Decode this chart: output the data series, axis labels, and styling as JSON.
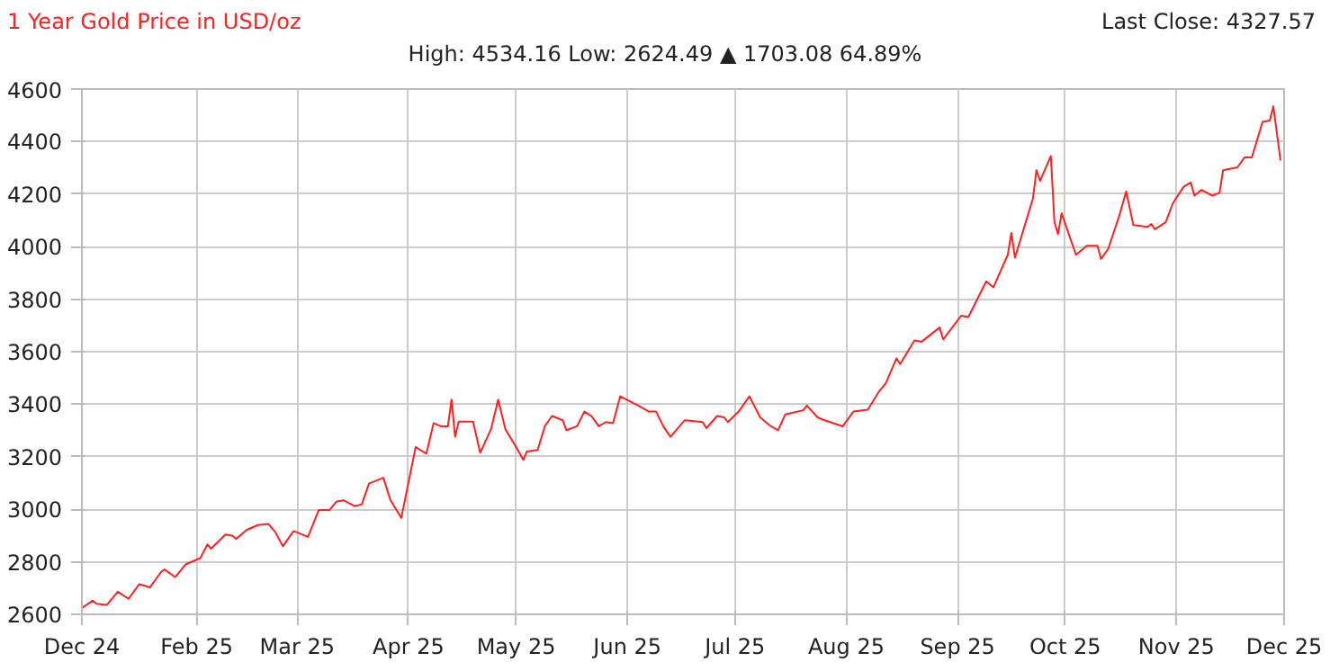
{
  "chart_data": {
    "type": "line",
    "title": "1 Year Gold Price in USD/oz",
    "subtitle": "High: 4534.16 Low: 2624.49 ▲ 1703.08 64.89%",
    "annotations": [
      "Last Close: 4327.57"
    ],
    "xlim": [
      "2024-12-31",
      "2025-12-01"
    ],
    "xticks": [
      {
        "value": "2024-12-31",
        "label": "Dec 24"
      },
      {
        "value": "2025-02-01",
        "label": "Feb 25"
      },
      {
        "value": "2025-03-01",
        "label": "Mar 25"
      },
      {
        "value": "2025-04-01",
        "label": "Apr 25"
      },
      {
        "value": "2025-05-01",
        "label": "May 25"
      },
      {
        "value": "2025-06-01",
        "label": "Jun 25"
      },
      {
        "value": "2025-07-01",
        "label": "Jul 25"
      },
      {
        "value": "2025-08-01",
        "label": "Aug 25"
      },
      {
        "value": "2025-09-01",
        "label": "Sep 25"
      },
      {
        "value": "2025-10-01",
        "label": "Oct 25"
      },
      {
        "value": "2025-11-01",
        "label": "Nov 25"
      },
      {
        "value": "2025-12-01",
        "label": "Dec 25"
      }
    ],
    "ylim": [
      2600,
      4600
    ],
    "yticks": [
      2600,
      2800,
      3000,
      3200,
      3400,
      3600,
      3800,
      4000,
      4200,
      4400,
      4600
    ],
    "grid": true,
    "line_style": "solid",
    "series": [
      {
        "color": "#ff2020",
        "x": [
          "2024-12-31",
          "2025-01-03",
          "2025-01-04",
          "2025-01-07",
          "2025-01-10",
          "2025-01-13",
          "2025-01-16",
          "2025-01-19",
          "2025-01-22",
          "2025-01-23",
          "2025-01-26",
          "2025-01-29",
          "2025-02-02",
          "2025-02-04",
          "2025-02-05",
          "2025-02-09",
          "2025-02-11",
          "2025-02-12",
          "2025-02-15",
          "2025-02-18",
          "2025-02-21",
          "2025-02-23",
          "2025-02-25",
          "2025-02-28",
          "2025-03-04",
          "2025-03-07",
          "2025-03-10",
          "2025-03-12",
          "2025-03-14",
          "2025-03-17",
          "2025-03-19",
          "2025-03-21",
          "2025-03-25",
          "2025-03-27",
          "2025-03-30",
          "2025-04-03",
          "2025-04-06",
          "2025-04-08",
          "2025-04-10",
          "2025-04-12",
          "2025-04-13",
          "2025-04-14",
          "2025-04-15",
          "2025-04-19",
          "2025-04-21",
          "2025-04-24",
          "2025-04-26",
          "2025-04-28",
          "2025-05-01",
          "2025-05-03",
          "2025-05-04",
          "2025-05-07",
          "2025-05-09",
          "2025-05-11",
          "2025-05-14",
          "2025-05-15",
          "2025-05-18",
          "2025-05-20",
          "2025-05-22",
          "2025-05-24",
          "2025-05-26",
          "2025-05-28",
          "2025-05-30",
          "2025-06-04",
          "2025-06-07",
          "2025-06-09",
          "2025-06-11",
          "2025-06-13",
          "2025-06-17",
          "2025-06-22",
          "2025-06-23",
          "2025-06-26",
          "2025-06-28",
          "2025-06-29",
          "2025-07-02",
          "2025-07-05",
          "2025-07-08",
          "2025-07-11",
          "2025-07-13",
          "2025-07-15",
          "2025-07-20",
          "2025-07-21",
          "2025-07-24",
          "2025-07-26",
          "2025-07-31",
          "2025-08-03",
          "2025-08-07",
          "2025-08-10",
          "2025-08-12",
          "2025-08-15",
          "2025-08-16",
          "2025-08-20",
          "2025-08-22",
          "2025-08-27",
          "2025-08-28",
          "2025-09-02",
          "2025-09-04",
          "2025-09-09",
          "2025-09-11",
          "2025-09-15",
          "2025-09-16",
          "2025-09-17",
          "2025-09-22",
          "2025-09-23",
          "2025-09-24",
          "2025-09-27",
          "2025-09-28",
          "2025-09-29",
          "2025-09-30",
          "2025-10-04",
          "2025-10-07",
          "2025-10-10",
          "2025-10-11",
          "2025-10-13",
          "2025-10-16",
          "2025-10-18",
          "2025-10-20",
          "2025-10-24",
          "2025-10-25",
          "2025-10-26",
          "2025-10-29",
          "2025-10-31",
          "2025-11-03",
          "2025-11-05",
          "2025-11-06",
          "2025-11-08",
          "2025-11-11",
          "2025-11-13",
          "2025-11-14",
          "2025-11-18",
          "2025-11-20",
          "2025-11-22",
          "2025-11-25",
          "2025-11-27",
          "2025-11-28",
          "2025-11-30"
        ],
        "values": [
          2624,
          2652,
          2640,
          2636,
          2686,
          2659,
          2715,
          2703,
          2760,
          2771,
          2742,
          2791,
          2814,
          2866,
          2850,
          2904,
          2899,
          2888,
          2922,
          2940,
          2944,
          2911,
          2859,
          2917,
          2895,
          2997,
          2997,
          3030,
          3034,
          3012,
          3019,
          3098,
          3120,
          3034,
          2967,
          3237,
          3212,
          3328,
          3316,
          3316,
          3418,
          3276,
          3334,
          3334,
          3215,
          3305,
          3418,
          3305,
          3237,
          3188,
          3220,
          3226,
          3316,
          3355,
          3339,
          3301,
          3316,
          3372,
          3355,
          3316,
          3332,
          3328,
          3430,
          3395,
          3372,
          3372,
          3316,
          3276,
          3339,
          3332,
          3309,
          3355,
          3350,
          3332,
          3372,
          3430,
          3350,
          3316,
          3301,
          3361,
          3377,
          3395,
          3350,
          3339,
          3316,
          3372,
          3379,
          3446,
          3480,
          3575,
          3553,
          3643,
          3638,
          3692,
          3647,
          3737,
          3732,
          3868,
          3845,
          3969,
          4052,
          3958,
          4183,
          4291,
          4250,
          4345,
          4093,
          4048,
          4127,
          3969,
          4003,
          4003,
          3953,
          3992,
          4115,
          4210,
          4082,
          4075,
          4086,
          4066,
          4093,
          4165,
          4228,
          4244,
          4194,
          4216,
          4194,
          4205,
          4291,
          4302,
          4340,
          4340,
          4475,
          4480,
          4534,
          4328
        ]
      }
    ]
  }
}
